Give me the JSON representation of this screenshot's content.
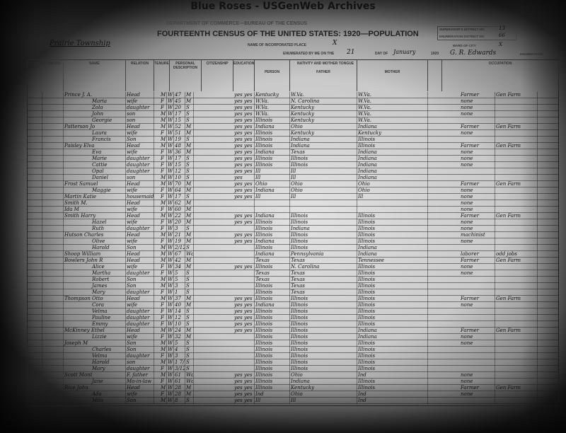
{
  "site_title": "Blue Roses - USGenWeb Archives",
  "header": {
    "department": "DEPARTMENT OF COMMERCE—BUREAU OF THE CENSUS",
    "title": "FOURTEENTH CENSUS OF THE UNITED STATES: 1920—POPULATION",
    "township": "Prairie Township",
    "incorporated_place_label": "NAME OF INCORPORATED PLACE",
    "incorporated_place": "X",
    "enumerated_label": "ENUMERATED BY ME ON THE",
    "day": "21",
    "day_of_label": "DAY OF",
    "month": "January",
    "year": "1920",
    "supervisor_label": "SUPERVISOR'S DISTRICT NO.",
    "supervisor_no": "13",
    "enumeration_label": "ENUMERATION DISTRICT NO.",
    "enumeration_no": "66",
    "ward_label": "WARD OF CITY",
    "ward": "X",
    "enumerator": "G. R. Edwards",
    "enumerator_label": "ENUMERATOR."
  },
  "columns": {
    "place": "PLACE OF ABODE",
    "name": "NAME",
    "relation": "RELATION",
    "tenure": "TENURE",
    "personal": "PERSONAL DESCRIPTION",
    "citizenship": "CITIZENSHIP",
    "education": "EDUCATION",
    "nativity": "NATIVITY AND MOTHER TONGUE",
    "person": "PERSON",
    "father": "FATHER",
    "mother": "MOTHER",
    "occupation": "OCCUPATION"
  },
  "rows": [
    {
      "name": "Prince J. A.",
      "relation": "Head",
      "sex": "M",
      "race": "W",
      "age": "47",
      "marital": "M",
      "lit": "yes yes",
      "birth": "Kentucky",
      "father": "W.Va.",
      "mother": "W.Va.",
      "occ": "Farmer",
      "ind": "Gen Farm"
    },
    {
      "name": "Maria",
      "relation": "wife",
      "sex": "F",
      "race": "W",
      "age": "45",
      "marital": "M",
      "lit": "yes yes",
      "birth": "W.Va.",
      "father": "N. Carolina",
      "mother": "W.Va.",
      "occ": "none",
      "ind": ""
    },
    {
      "name": "Zola",
      "relation": "daughter",
      "sex": "F",
      "race": "W",
      "age": "20",
      "marital": "S",
      "lit": "yes yes",
      "birth": "W.Va.",
      "father": "Kentucky",
      "mother": "W.Va.",
      "occ": "none",
      "ind": ""
    },
    {
      "name": "John",
      "relation": "son",
      "sex": "M",
      "race": "W",
      "age": "17",
      "marital": "S",
      "lit": "yes yes",
      "birth": "W.Va.",
      "father": "Kentucky",
      "mother": "W.Va.",
      "occ": "none",
      "ind": ""
    },
    {
      "name": "Georgie",
      "relation": "son",
      "sex": "M",
      "race": "W",
      "age": "15",
      "marital": "S",
      "lit": "yes yes",
      "birth": "Illinois",
      "father": "Kentucky",
      "mother": "W.Va.",
      "occ": "",
      "ind": ""
    },
    {
      "name": "Patterson Jo",
      "relation": "Head",
      "sex": "M",
      "race": "W",
      "age": "52",
      "marital": "M",
      "lit": "yes yes",
      "birth": "Indiana",
      "father": "Ohio",
      "mother": "Indiana",
      "occ": "Farmer",
      "ind": "Gen Farm"
    },
    {
      "name": "Laura",
      "relation": "wife",
      "sex": "F",
      "race": "W",
      "age": "51",
      "marital": "M",
      "lit": "yes yes",
      "birth": "Illinois",
      "father": "Kentucky",
      "mother": "Kentucky",
      "occ": "none",
      "ind": ""
    },
    {
      "name": "Francis",
      "relation": "Son",
      "sex": "M",
      "race": "W",
      "age": "19",
      "marital": "S",
      "lit": "yes yes",
      "birth": "Illinois",
      "father": "Indiana",
      "mother": "Illinois",
      "occ": "",
      "ind": ""
    },
    {
      "name": "Paisley Elva",
      "relation": "Head",
      "sex": "M",
      "race": "W",
      "age": "48",
      "marital": "M",
      "lit": "yes yes",
      "birth": "Illinois",
      "father": "Indiana",
      "mother": "Illinois",
      "occ": "Farmer",
      "ind": "Gen Farm"
    },
    {
      "name": "Eva",
      "relation": "wife",
      "sex": "F",
      "race": "W",
      "age": "36",
      "marital": "M",
      "lit": "yes yes",
      "birth": "Indiana",
      "father": "Texas",
      "mother": "Indiana",
      "occ": "none",
      "ind": ""
    },
    {
      "name": "Marie",
      "relation": "daughter",
      "sex": "F",
      "race": "W",
      "age": "17",
      "marital": "S",
      "lit": "yes yes",
      "birth": "Illinois",
      "father": "Illinois",
      "mother": "Indiana",
      "occ": "none",
      "ind": ""
    },
    {
      "name": "Cattie",
      "relation": "daughter",
      "sex": "F",
      "race": "W",
      "age": "15",
      "marital": "S",
      "lit": "yes yes",
      "birth": "Illinois",
      "father": "Illinois",
      "mother": "Indiana",
      "occ": "none",
      "ind": ""
    },
    {
      "name": "Opal",
      "relation": "daughter",
      "sex": "F",
      "race": "W",
      "age": "12",
      "marital": "S",
      "lit": "yes yes",
      "birth": "Ill",
      "father": "Ill",
      "mother": "Indiana",
      "occ": "",
      "ind": ""
    },
    {
      "name": "Daniel",
      "relation": "son",
      "sex": "M",
      "race": "W",
      "age": "10",
      "marital": "S",
      "lit": "yes",
      "birth": "Ill",
      "father": "Ill",
      "mother": "Indiana",
      "occ": "",
      "ind": ""
    },
    {
      "name": "Frost Samuel",
      "relation": "Head",
      "sex": "M",
      "race": "W",
      "age": "70",
      "marital": "M",
      "lit": "yes yes",
      "birth": "Ohio",
      "father": "Ohio",
      "mother": "Ohio",
      "occ": "Farmer",
      "ind": "Gen Farm"
    },
    {
      "name": "Maggie",
      "relation": "wife",
      "sex": "F",
      "race": "W",
      "age": "64",
      "marital": "M",
      "lit": "yes yes",
      "birth": "Indiana",
      "father": "Ohio",
      "mother": "Ohio",
      "occ": "none",
      "ind": ""
    },
    {
      "name": "Martin Katie",
      "relation": "housemaid",
      "sex": "F",
      "race": "W",
      "age": "17",
      "marital": "S",
      "lit": "yes yes",
      "birth": "Ill",
      "father": "Ill",
      "mother": "Ill",
      "occ": "none",
      "ind": ""
    },
    {
      "name": "Smith M.",
      "relation": "Head",
      "sex": "M",
      "race": "W",
      "age": "62",
      "marital": "M",
      "lit": "",
      "birth": "",
      "father": "",
      "mother": "",
      "occ": "none",
      "ind": ""
    },
    {
      "name": "Ida M",
      "relation": "wife",
      "sex": "F",
      "race": "W",
      "age": "60",
      "marital": "M",
      "lit": "",
      "birth": "",
      "father": "",
      "mother": "",
      "occ": "none",
      "ind": ""
    },
    {
      "name": "Smith Harry",
      "relation": "Head",
      "sex": "M",
      "race": "W",
      "age": "22",
      "marital": "M",
      "lit": "yes yes",
      "birth": "Indiana",
      "father": "Illinois",
      "mother": "Illinois",
      "occ": "Farmer",
      "ind": "Gen Farm"
    },
    {
      "name": "Hazel",
      "relation": "wife",
      "sex": "F",
      "race": "W",
      "age": "20",
      "marital": "M",
      "lit": "yes yes",
      "birth": "Illinois",
      "father": "Illinois",
      "mother": "Illinois",
      "occ": "none",
      "ind": ""
    },
    {
      "name": "Ruth",
      "relation": "daughter",
      "sex": "F",
      "race": "W",
      "age": "3",
      "marital": "S",
      "lit": "",
      "birth": "Illinois",
      "father": "Indiana",
      "mother": "Illinois",
      "occ": "none",
      "ind": ""
    },
    {
      "name": "Hutson Charles",
      "relation": "Head",
      "sex": "M",
      "race": "W",
      "age": "21",
      "marital": "M",
      "lit": "yes yes",
      "birth": "Illinois",
      "father": "Illinois",
      "mother": "Illinois",
      "occ": "machinist",
      "ind": ""
    },
    {
      "name": "Olive",
      "relation": "wife",
      "sex": "F",
      "race": "W",
      "age": "19",
      "marital": "M",
      "lit": "yes yes",
      "birth": "Indiana",
      "father": "Illinois",
      "mother": "Illinois",
      "occ": "none",
      "ind": ""
    },
    {
      "name": "Harold",
      "relation": "Son",
      "sex": "M",
      "race": "W",
      "age": "2/12",
      "marital": "S",
      "lit": "",
      "birth": "Illinois",
      "father": "Illinois",
      "mother": "Indiana",
      "occ": "",
      "ind": ""
    },
    {
      "name": "Shoop William",
      "relation": "Head",
      "sex": "M",
      "race": "W",
      "age": "67",
      "marital": "Wd",
      "lit": "",
      "birth": "Indiana",
      "father": "Pennsylvania",
      "mother": "Indiana",
      "occ": "laborer",
      "ind": "odd jobs"
    },
    {
      "name": "Bowlers John R",
      "relation": "Head",
      "sex": "M",
      "race": "W",
      "age": "42",
      "marital": "M",
      "lit": "",
      "birth": "Texas",
      "father": "Texas",
      "mother": "Tennessee",
      "occ": "Farmer",
      "ind": "Gen Farm"
    },
    {
      "name": "Alice",
      "relation": "wife",
      "sex": "F",
      "race": "W",
      "age": "34",
      "marital": "M",
      "lit": "yes yes",
      "birth": "Illinois",
      "father": "N. Carolina",
      "mother": "Illinois",
      "occ": "none",
      "ind": ""
    },
    {
      "name": "Martha",
      "relation": "daughter",
      "sex": "F",
      "race": "W",
      "age": "5",
      "marital": "S",
      "lit": "",
      "birth": "Texas",
      "father": "Texas",
      "mother": "Illinois",
      "occ": "none",
      "ind": ""
    },
    {
      "name": "Robert",
      "relation": "Son",
      "sex": "M",
      "race": "W",
      "age": "5",
      "marital": "S",
      "lit": "",
      "birth": "Texas",
      "father": "Texas",
      "mother": "Illinois",
      "occ": "",
      "ind": ""
    },
    {
      "name": "James",
      "relation": "Son",
      "sex": "M",
      "race": "W",
      "age": "3",
      "marital": "S",
      "lit": "",
      "birth": "Illinois",
      "father": "Texas",
      "mother": "Illinois",
      "occ": "",
      "ind": ""
    },
    {
      "name": "Mary",
      "relation": "daughter",
      "sex": "F",
      "race": "W",
      "age": "1",
      "marital": "S",
      "lit": "",
      "birth": "Illinois",
      "father": "Texas",
      "mother": "Illinois",
      "occ": "",
      "ind": ""
    },
    {
      "name": "Thompson Otto",
      "relation": "Head",
      "sex": "M",
      "race": "W",
      "age": "37",
      "marital": "M",
      "lit": "yes yes",
      "birth": "Illinois",
      "father": "Illinois",
      "mother": "Illinois",
      "occ": "Farmer",
      "ind": "Gen Farm"
    },
    {
      "name": "Cora",
      "relation": "wife",
      "sex": "F",
      "race": "W",
      "age": "40",
      "marital": "M",
      "lit": "yes yes",
      "birth": "Indiana",
      "father": "Illinois",
      "mother": "Illinois",
      "occ": "none",
      "ind": ""
    },
    {
      "name": "Velma",
      "relation": "daughter",
      "sex": "F",
      "race": "W",
      "age": "14",
      "marital": "S",
      "lit": "yes yes yes",
      "birth": "Illinois",
      "father": "Illinois",
      "mother": "Illinois",
      "occ": "",
      "ind": ""
    },
    {
      "name": "Pauline",
      "relation": "daughter",
      "sex": "F",
      "race": "W",
      "age": "12",
      "marital": "S",
      "lit": "yes yes yes",
      "birth": "Illinois",
      "father": "Illinois",
      "mother": "Illinois",
      "occ": "",
      "ind": ""
    },
    {
      "name": "Emmy",
      "relation": "daughter",
      "sex": "F",
      "race": "W",
      "age": "10",
      "marital": "S",
      "lit": "yes yes yes",
      "birth": "Illinois",
      "father": "Illinois",
      "mother": "Illinois",
      "occ": "",
      "ind": ""
    },
    {
      "name": "McKinney Ethel",
      "relation": "Head",
      "sex": "M",
      "race": "W",
      "age": "24",
      "marital": "M",
      "lit": "yes yes",
      "birth": "Illinois",
      "father": "Illinois",
      "mother": "Indiana",
      "occ": "Farmer",
      "ind": "Gen Farm"
    },
    {
      "name": "Lizzie",
      "relation": "wife",
      "sex": "F",
      "race": "W",
      "age": "32",
      "marital": "M",
      "lit": "",
      "birth": "Illinois",
      "father": "Illinois",
      "mother": "Indiana",
      "occ": "none",
      "ind": ""
    },
    {
      "name": "Joseph M",
      "relation": "Son",
      "sex": "M",
      "race": "W",
      "age": "5",
      "marital": "S",
      "lit": "",
      "birth": "Illinois",
      "father": "Illinois",
      "mother": "Illinois",
      "occ": "none",
      "ind": ""
    },
    {
      "name": "Charles",
      "relation": "Son",
      "sex": "M",
      "race": "W",
      "age": "4",
      "marital": "S",
      "lit": "",
      "birth": "Illinois",
      "father": "Illinois",
      "mother": "Illinois",
      "occ": "",
      "ind": ""
    },
    {
      "name": "Velma",
      "relation": "daughter",
      "sex": "F",
      "race": "W",
      "age": "3",
      "marital": "S",
      "lit": "",
      "birth": "Illinois",
      "father": "Illinois",
      "mother": "Illinois",
      "occ": "",
      "ind": ""
    },
    {
      "name": "Harold",
      "relation": "son",
      "sex": "M",
      "race": "W",
      "age": "1 7/12",
      "marital": "S",
      "lit": "",
      "birth": "Illinois",
      "father": "Illinois",
      "mother": "Illinois",
      "occ": "",
      "ind": ""
    },
    {
      "name": "Mary",
      "relation": "daughter",
      "sex": "F",
      "race": "W",
      "age": "3/12",
      "marital": "S",
      "lit": "",
      "birth": "Illinois",
      "father": "Illinois",
      "mother": "Illinois",
      "occ": "",
      "ind": ""
    },
    {
      "name": "Scott Mont",
      "relation": "F. father",
      "sex": "M",
      "race": "W",
      "age": "61",
      "marital": "Wd",
      "lit": "yes yes",
      "birth": "Illinois",
      "father": "Ohio",
      "mother": "Ind",
      "occ": "none",
      "ind": ""
    },
    {
      "name": "Jane",
      "relation": "Mo-in-law",
      "sex": "F",
      "race": "W",
      "age": "61",
      "marital": "Wd",
      "lit": "yes yes",
      "birth": "Illinois",
      "father": "Indiana",
      "mother": "Illinois",
      "occ": "none",
      "ind": ""
    },
    {
      "name": "Rice John",
      "relation": "Head",
      "sex": "M",
      "race": "W",
      "age": "28",
      "marital": "M",
      "lit": "yes yes",
      "birth": "Illinois",
      "father": "Kentucky",
      "mother": "Illinois",
      "occ": "Farmer",
      "ind": "Gen Farm"
    },
    {
      "name": "Ada",
      "relation": "wife",
      "sex": "F",
      "race": "W",
      "age": "28",
      "marital": "M",
      "lit": "yes yes",
      "birth": "Ind",
      "father": "Ohio",
      "mother": "Ind",
      "occ": "none",
      "ind": ""
    },
    {
      "name": "Milo",
      "relation": "Son",
      "sex": "M",
      "race": "W",
      "age": "8",
      "marital": "S",
      "lit": "yes yes",
      "birth": "Ill",
      "father": "Ill",
      "mother": "Ind",
      "occ": "",
      "ind": ""
    }
  ]
}
